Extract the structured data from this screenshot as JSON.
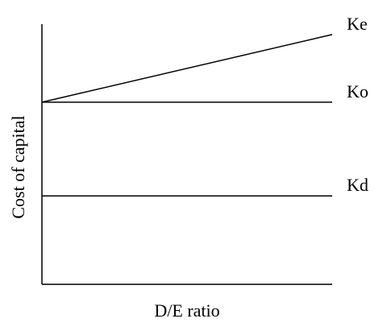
{
  "chart_data": {
    "type": "line",
    "xlabel": "D/E ratio",
    "ylabel": "Cost of capital",
    "xlim": [
      0,
      1
    ],
    "ylim": [
      0,
      1
    ],
    "grid": false,
    "legend": "none",
    "series": [
      {
        "name": "Ke",
        "x": [
          0,
          1
        ],
        "y": [
          0.7,
          0.96
        ]
      },
      {
        "name": "Ko",
        "x": [
          0,
          1
        ],
        "y": [
          0.7,
          0.7
        ]
      },
      {
        "name": "Kd",
        "x": [
          0,
          1
        ],
        "y": [
          0.34,
          0.34
        ]
      }
    ]
  },
  "colors": {
    "line": "#000000",
    "background": "#ffffff"
  }
}
